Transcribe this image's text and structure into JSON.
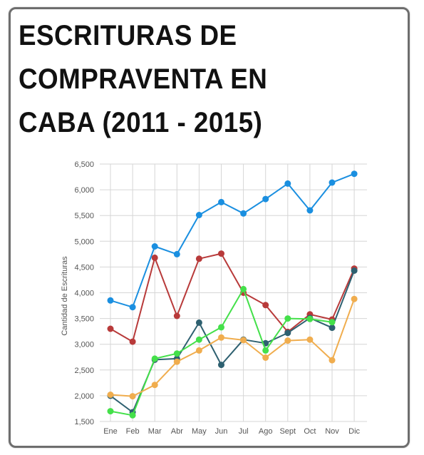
{
  "title_lines": [
    "ESCRITURAS DE",
    "COMPRAVENTA EN",
    "CABA (2011 - 2015)"
  ],
  "chart_data": {
    "type": "line",
    "title": "ESCRITURAS DE COMPRAVENTA EN CABA (2011 - 2015)",
    "xlabel": "",
    "ylabel": "Cantidad de Escrituras",
    "categories": [
      "Ene",
      "Feb",
      "Mar",
      "Abr",
      "May",
      "Jun",
      "Jul",
      "Ago",
      "Sept",
      "Oct",
      "Nov",
      "Dic"
    ],
    "ylim": [
      1500,
      6500
    ],
    "yticks": [
      1500,
      2000,
      2500,
      3000,
      3500,
      4000,
      4500,
      5000,
      5500,
      6000,
      6500
    ],
    "ytick_labels": [
      "1,500",
      "2,000",
      "2,500",
      "3,000",
      "3,500",
      "4,000",
      "4,500",
      "5,000",
      "5,500",
      "6,000",
      "6,500"
    ],
    "grid": true,
    "series": [
      {
        "color": "#1a8fe0",
        "values": [
          3850,
          3720,
          4900,
          4750,
          5510,
          5760,
          5540,
          5820,
          6120,
          5600,
          6140,
          6310
        ]
      },
      {
        "color": "#b83a3a",
        "values": [
          3300,
          3050,
          4680,
          3550,
          4660,
          4760,
          4000,
          3760,
          3240,
          3580,
          3480,
          4470
        ]
      },
      {
        "color": "#2e6070",
        "values": [
          2000,
          1680,
          2700,
          2720,
          3420,
          2600,
          3090,
          3020,
          3220,
          3510,
          3320,
          4430
        ]
      },
      {
        "color": "#44e04a",
        "values": [
          1700,
          1620,
          2720,
          2820,
          3090,
          3330,
          4070,
          2880,
          3500,
          3490,
          3430,
          null
        ]
      },
      {
        "color": "#f0ad4e",
        "values": [
          2020,
          1990,
          2210,
          2660,
          2880,
          3130,
          3080,
          2740,
          3070,
          3090,
          2690,
          3880
        ]
      }
    ]
  }
}
